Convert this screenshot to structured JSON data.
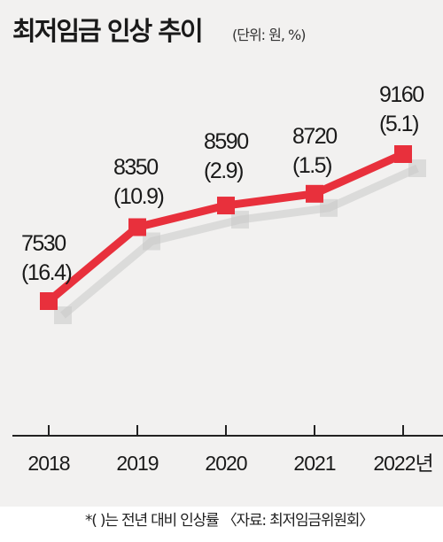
{
  "title": "최저임금 인상 추이",
  "unit": "(단위: 원, %)",
  "note": "*(  )는 전년 대비 인상률 〈자료: 최저임금위원회〉",
  "colors": {
    "line": "#e8303c",
    "shadow": "#c8c8c8",
    "background": "#f2f1f0",
    "axis": "#222222"
  },
  "chart_data": {
    "type": "line",
    "title": "최저임금 인상 추이",
    "unit": "(단위: 원, %)",
    "categories": [
      "2018",
      "2019",
      "2020",
      "2021",
      "2022년"
    ],
    "values": [
      7530,
      8350,
      8590,
      8720,
      9160
    ],
    "value_labels": [
      "7530",
      "8350",
      "8590",
      "8720",
      "9160"
    ],
    "rates": [
      16.4,
      10.9,
      2.9,
      1.5,
      5.1
    ],
    "rate_labels": [
      "(16.4)",
      "(10.9)",
      "(2.9)",
      "(1.5)",
      "(5.1)"
    ],
    "grid": false,
    "legend": "none"
  }
}
